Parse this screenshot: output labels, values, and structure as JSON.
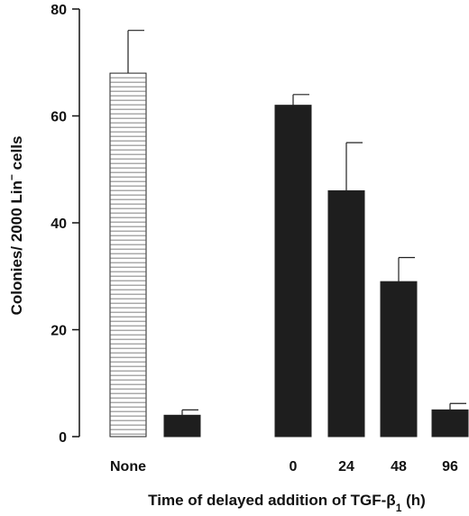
{
  "chart_data": {
    "type": "bar",
    "ylabel_parts": {
      "main": "Colonies/ 2000 Lin",
      "sup": "−",
      "tail": " cells"
    },
    "xlabel_parts": {
      "main": "Time of delayed addition of TGF-β",
      "sub": "1",
      "tail": " (h)"
    },
    "ylim": [
      0,
      80
    ],
    "yticks": [
      0,
      20,
      40,
      60,
      80
    ],
    "grid": false,
    "legend": "none",
    "bars": [
      {
        "label": "None",
        "value": 68,
        "error": 8,
        "pattern": "hlines"
      },
      {
        "label": "",
        "value": 4,
        "error": 1,
        "pattern": "solid"
      },
      {
        "label": "0",
        "value": 62,
        "error": 2,
        "pattern": "solid"
      },
      {
        "label": "24",
        "value": 46,
        "error": 9,
        "pattern": "solid"
      },
      {
        "label": "48",
        "value": 29,
        "error": 4.5,
        "pattern": "solid"
      },
      {
        "label": "96",
        "value": 5,
        "error": 1.2,
        "pattern": "solid"
      }
    ],
    "colors": {
      "solid": "#1e1e1e",
      "outline": "#222222",
      "hatch": "#555555",
      "axis": "#111111"
    }
  }
}
